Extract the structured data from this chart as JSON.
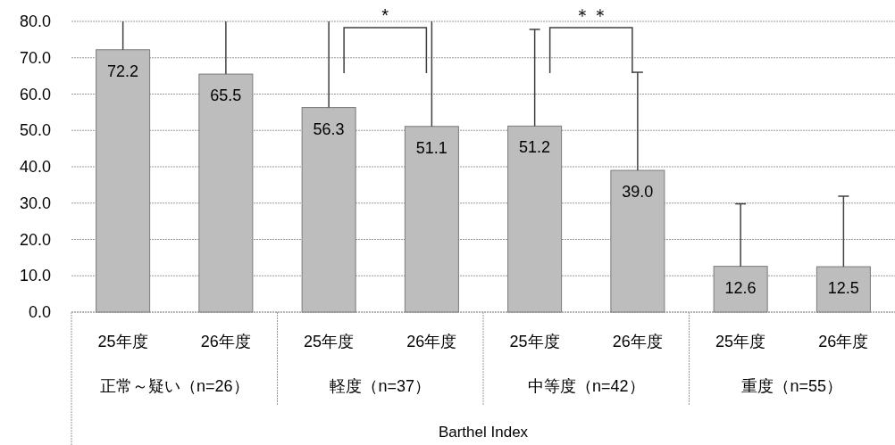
{
  "chart_data": {
    "type": "bar",
    "categories": [
      "25年度",
      "26年度",
      "25年度",
      "26年度",
      "25年度",
      "26年度",
      "25年度",
      "26年度"
    ],
    "values": [
      72.2,
      65.5,
      56.3,
      51.1,
      51.2,
      39.0,
      12.6,
      12.5
    ],
    "errors": [
      [
        72.2,
        80
      ],
      [
        65.5,
        80
      ],
      [
        56.3,
        80
      ],
      [
        51.1,
        80
      ],
      [
        51.2,
        77.8
      ],
      [
        39.0,
        66.0
      ],
      [
        12.6,
        29.8
      ],
      [
        12.5,
        31.9
      ]
    ],
    "color": "#bdbdbd",
    "xlabel": "Barthel Index",
    "annotations": [
      "正常～疑い（n=26）",
      "軽度（n=37）",
      "中等度（n=42）",
      "重度（n=55）",
      "*",
      "＊＊"
    ],
    "ylim": [
      0,
      80
    ],
    "yticks": [
      {
        "value": 0,
        "label": "0.0"
      },
      {
        "value": 10,
        "label": "10.0"
      },
      {
        "value": 20,
        "label": "20.0"
      },
      {
        "value": 30,
        "label": "30.0"
      },
      {
        "value": 40,
        "label": "40.0"
      },
      {
        "value": 50,
        "label": "50.0"
      },
      {
        "value": 60,
        "label": "60.0"
      },
      {
        "value": 70,
        "label": "70.0"
      },
      {
        "value": 80,
        "label": "80.0"
      }
    ],
    "grid": "y",
    "value_labels": [
      "72.2",
      "65.5",
      "56.3",
      "51.1",
      "51.2",
      "39.0",
      "12.6",
      "12.5"
    ]
  }
}
